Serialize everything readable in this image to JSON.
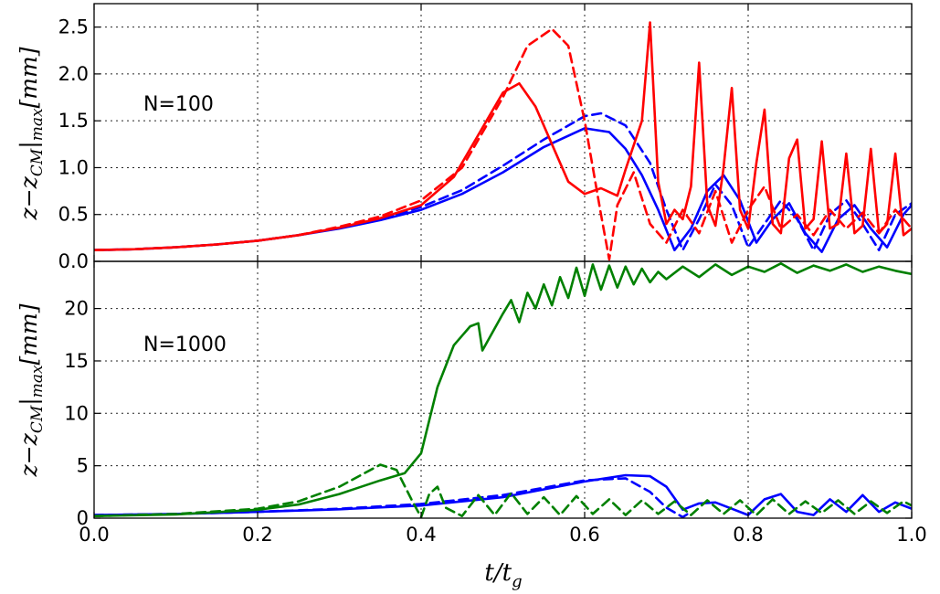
{
  "chart_data": [
    {
      "type": "line",
      "panel": "top",
      "annotation": "N=100",
      "ylabel_main": "z−z",
      "ylabel_sub": "CM",
      "ylabel_tail": "|",
      "ylabel_sub2": "max",
      "ylabel_unit": "[mm]",
      "xlim": [
        0,
        1
      ],
      "ylim": [
        0,
        2.75
      ],
      "yticks": [
        "0.0",
        "0.5",
        "1.0",
        "1.5",
        "2.0",
        "2.5"
      ],
      "ytick_values": [
        0,
        0.5,
        1.0,
        1.5,
        2.0,
        2.5
      ],
      "grid": true,
      "series": [
        {
          "color": "#0000ff",
          "style": "solid",
          "x": [
            0,
            0.05,
            0.1,
            0.15,
            0.2,
            0.25,
            0.3,
            0.35,
            0.4,
            0.45,
            0.5,
            0.55,
            0.6,
            0.63,
            0.65,
            0.67,
            0.69,
            0.71,
            0.73,
            0.75,
            0.77,
            0.79,
            0.81,
            0.83,
            0.85,
            0.87,
            0.89,
            0.91,
            0.93,
            0.95,
            0.97,
            0.99,
            1.0
          ],
          "y": [
            0.12,
            0.13,
            0.15,
            0.18,
            0.22,
            0.28,
            0.35,
            0.44,
            0.55,
            0.72,
            0.95,
            1.22,
            1.42,
            1.38,
            1.2,
            0.92,
            0.55,
            0.12,
            0.35,
            0.75,
            0.92,
            0.65,
            0.2,
            0.45,
            0.62,
            0.3,
            0.1,
            0.45,
            0.6,
            0.35,
            0.15,
            0.5,
            0.6
          ]
        },
        {
          "color": "#0000ff",
          "style": "dashed",
          "x": [
            0,
            0.05,
            0.1,
            0.15,
            0.2,
            0.25,
            0.3,
            0.35,
            0.4,
            0.45,
            0.5,
            0.55,
            0.6,
            0.62,
            0.65,
            0.68,
            0.7,
            0.72,
            0.74,
            0.76,
            0.78,
            0.8,
            0.82,
            0.84,
            0.86,
            0.88,
            0.9,
            0.92,
            0.94,
            0.96,
            0.98,
            1.0
          ],
          "y": [
            0.12,
            0.13,
            0.15,
            0.18,
            0.22,
            0.28,
            0.36,
            0.45,
            0.58,
            0.76,
            1.02,
            1.3,
            1.55,
            1.58,
            1.45,
            1.05,
            0.55,
            0.12,
            0.45,
            0.82,
            0.6,
            0.15,
            0.4,
            0.65,
            0.45,
            0.12,
            0.5,
            0.65,
            0.4,
            0.12,
            0.5,
            0.62
          ]
        },
        {
          "color": "#ff0000",
          "style": "solid",
          "x": [
            0,
            0.05,
            0.1,
            0.15,
            0.2,
            0.25,
            0.3,
            0.35,
            0.4,
            0.44,
            0.47,
            0.5,
            0.52,
            0.54,
            0.56,
            0.58,
            0.6,
            0.62,
            0.64,
            0.65,
            0.67,
            0.68,
            0.69,
            0.7,
            0.71,
            0.72,
            0.73,
            0.74,
            0.75,
            0.76,
            0.77,
            0.78,
            0.79,
            0.8,
            0.81,
            0.82,
            0.83,
            0.84,
            0.85,
            0.86,
            0.87,
            0.88,
            0.89,
            0.9,
            0.91,
            0.92,
            0.93,
            0.94,
            0.95,
            0.96,
            0.97,
            0.98,
            0.99,
            1.0
          ],
          "y": [
            0.12,
            0.13,
            0.15,
            0.18,
            0.22,
            0.28,
            0.36,
            0.46,
            0.6,
            0.9,
            1.35,
            1.8,
            1.9,
            1.65,
            1.25,
            0.85,
            0.72,
            0.78,
            0.7,
            0.98,
            1.5,
            2.55,
            0.85,
            0.4,
            0.55,
            0.45,
            0.8,
            2.12,
            0.6,
            0.38,
            1.0,
            1.85,
            0.55,
            0.35,
            1.05,
            1.62,
            0.4,
            0.3,
            1.1,
            1.3,
            0.35,
            0.45,
            1.28,
            0.35,
            0.4,
            1.15,
            0.3,
            0.38,
            1.2,
            0.3,
            0.4,
            1.15,
            0.28,
            0.35
          ]
        },
        {
          "color": "#ff0000",
          "style": "dashed",
          "x": [
            0,
            0.05,
            0.1,
            0.15,
            0.2,
            0.25,
            0.3,
            0.35,
            0.4,
            0.45,
            0.5,
            0.53,
            0.56,
            0.58,
            0.6,
            0.62,
            0.63,
            0.64,
            0.66,
            0.68,
            0.7,
            0.72,
            0.74,
            0.76,
            0.78,
            0.8,
            0.82,
            0.84,
            0.86,
            0.88,
            0.9,
            0.92,
            0.94,
            0.96,
            0.98,
            1.0
          ],
          "y": [
            0.12,
            0.13,
            0.15,
            0.18,
            0.22,
            0.28,
            0.37,
            0.48,
            0.65,
            1.0,
            1.75,
            2.3,
            2.48,
            2.3,
            1.5,
            0.5,
            0.02,
            0.6,
            0.95,
            0.4,
            0.2,
            0.55,
            0.3,
            0.75,
            0.2,
            0.55,
            0.8,
            0.35,
            0.5,
            0.28,
            0.55,
            0.35,
            0.52,
            0.3,
            0.55,
            0.35
          ]
        }
      ]
    },
    {
      "type": "line",
      "panel": "bottom",
      "annotation": "N=1000",
      "ylabel_main": "z−z",
      "ylabel_sub": "CM",
      "ylabel_tail": "|",
      "ylabel_sub2": "max",
      "ylabel_unit": "[mm]",
      "xlabel_main": "t/t",
      "xlabel_sub": "g",
      "xlim": [
        0,
        1
      ],
      "ylim": [
        0,
        24.5
      ],
      "xticks": [
        "0.0",
        "0.2",
        "0.4",
        "0.6",
        "0.8",
        "1.0"
      ],
      "xtick_values": [
        0,
        0.2,
        0.4,
        0.6,
        0.8,
        1.0
      ],
      "yticks": [
        "0",
        "5",
        "10",
        "15",
        "20"
      ],
      "ytick_values": [
        0,
        5,
        10,
        15,
        20
      ],
      "grid": true,
      "series": [
        {
          "color": "#0000ff",
          "style": "solid",
          "x": [
            0,
            0.1,
            0.2,
            0.3,
            0.4,
            0.5,
            0.6,
            0.65,
            0.68,
            0.7,
            0.72,
            0.74,
            0.76,
            0.78,
            0.8,
            0.82,
            0.84,
            0.86,
            0.88,
            0.9,
            0.92,
            0.94,
            0.96,
            0.98,
            1.0
          ],
          "y": [
            0.3,
            0.4,
            0.6,
            0.85,
            1.2,
            2.0,
            3.5,
            4.1,
            4.0,
            3.0,
            0.8,
            1.4,
            1.5,
            0.9,
            0.3,
            1.8,
            2.3,
            0.6,
            0.3,
            1.8,
            0.6,
            2.2,
            0.6,
            1.5,
            0.9
          ]
        },
        {
          "color": "#0000ff",
          "style": "dashed",
          "x": [
            0,
            0.1,
            0.2,
            0.3,
            0.4,
            0.5,
            0.6,
            0.65,
            0.68,
            0.7,
            0.72,
            0.73
          ],
          "y": [
            0.3,
            0.4,
            0.6,
            0.9,
            1.35,
            2.2,
            3.6,
            3.8,
            2.5,
            1.0,
            0.1,
            0.6
          ]
        },
        {
          "color": "#008000",
          "style": "solid",
          "x": [
            0,
            0.1,
            0.2,
            0.25,
            0.3,
            0.35,
            0.38,
            0.4,
            0.42,
            0.44,
            0.46,
            0.47,
            0.475,
            0.5,
            0.51,
            0.52,
            0.53,
            0.54,
            0.55,
            0.56,
            0.57,
            0.58,
            0.59,
            0.6,
            0.61,
            0.62,
            0.63,
            0.64,
            0.65,
            0.66,
            0.67,
            0.68,
            0.69,
            0.7,
            0.72,
            0.74,
            0.76,
            0.78,
            0.8,
            0.82,
            0.84,
            0.86,
            0.88,
            0.9,
            0.92,
            0.94,
            0.96,
            0.98,
            1.0
          ],
          "y": [
            0.2,
            0.35,
            0.8,
            1.3,
            2.3,
            3.6,
            4.3,
            6.2,
            12.5,
            16.5,
            18.3,
            18.6,
            16.0,
            19.5,
            20.8,
            18.7,
            21.5,
            20.0,
            22.3,
            20.3,
            23.0,
            21.0,
            23.9,
            21.2,
            24.2,
            21.8,
            24.1,
            22.0,
            24.0,
            22.3,
            23.8,
            22.5,
            23.5,
            22.8,
            24.0,
            23.0,
            24.2,
            23.2,
            24.0,
            23.5,
            24.3,
            23.4,
            24.1,
            23.6,
            24.2,
            23.5,
            24.0,
            23.6,
            23.3
          ]
        },
        {
          "color": "#008000",
          "style": "dashed",
          "x": [
            0,
            0.1,
            0.2,
            0.25,
            0.3,
            0.35,
            0.37,
            0.39,
            0.4,
            0.41,
            0.42,
            0.43,
            0.45,
            0.47,
            0.49,
            0.51,
            0.53,
            0.55,
            0.57,
            0.59,
            0.61,
            0.63,
            0.65,
            0.67,
            0.69,
            0.71,
            0.73,
            0.75,
            0.77,
            0.79,
            0.81,
            0.83,
            0.85,
            0.87,
            0.89,
            0.91,
            0.93,
            0.95,
            0.97,
            0.99,
            1.0
          ],
          "y": [
            0.2,
            0.4,
            0.9,
            1.6,
            3.0,
            5.1,
            4.6,
            1.5,
            0.1,
            2.3,
            3.0,
            1.0,
            0.2,
            2.2,
            0.3,
            2.4,
            0.4,
            2.0,
            0.3,
            2.1,
            0.4,
            1.8,
            0.3,
            1.7,
            0.4,
            1.6,
            0.3,
            1.7,
            0.4,
            1.7,
            0.3,
            1.8,
            0.4,
            1.6,
            0.5,
            1.7,
            0.4,
            1.6,
            0.5,
            1.6,
            1.2
          ]
        }
      ]
    }
  ]
}
